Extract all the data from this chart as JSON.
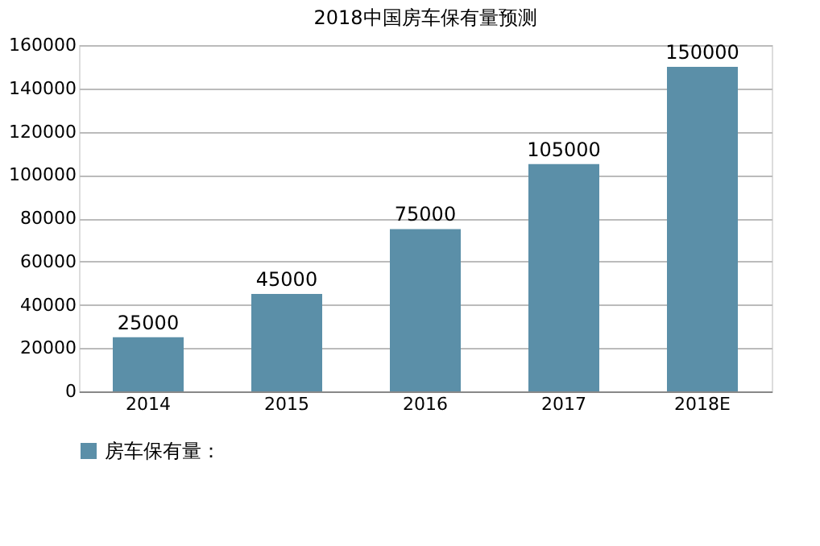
{
  "chart_data": {
    "type": "bar",
    "title": "2018中国房车保有量预测",
    "categories": [
      "2014",
      "2015",
      "2016",
      "2017",
      "2018E"
    ],
    "series": [
      {
        "name": "房车保有量：",
        "color": "#5b8fa8",
        "values": [
          25000,
          45000,
          75000,
          105000,
          150000
        ]
      }
    ],
    "ylim": [
      0,
      160000
    ],
    "yticks": [
      0,
      20000,
      40000,
      60000,
      80000,
      100000,
      120000,
      140000,
      160000
    ],
    "grid": "y",
    "legend": "bottom",
    "data_labels": true
  }
}
